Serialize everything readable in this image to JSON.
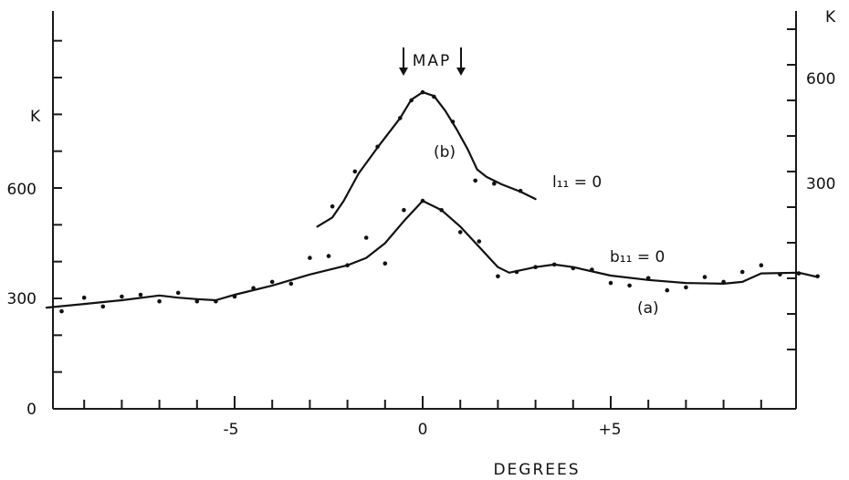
{
  "chart_data": {
    "type": "line",
    "xlabel": "DEGREES",
    "left_axis": {
      "unit": "K",
      "ticks": [
        "0",
        "300",
        "600"
      ]
    },
    "right_axis": {
      "unit": "K",
      "ticks": [
        "300",
        "600"
      ]
    },
    "x_ticks": [
      "-5",
      "0",
      "+5"
    ],
    "xlim": [
      -10,
      10
    ],
    "ylim_left": [
      0,
      1050
    ],
    "annotations": {
      "map": "MAP",
      "curve_a": "(a)",
      "curve_b": "(b)",
      "b_eq": "b₁₁ = 0",
      "l_eq": "l₁₁ = 0"
    },
    "series": [
      {
        "name": "(a)",
        "curve": [
          [
            -10,
            275
          ],
          [
            -9,
            285
          ],
          [
            -8,
            295
          ],
          [
            -7,
            308
          ],
          [
            -6.5,
            302
          ],
          [
            -6,
            298
          ],
          [
            -5.5,
            295
          ],
          [
            -5,
            310
          ],
          [
            -4,
            335
          ],
          [
            -3,
            365
          ],
          [
            -2,
            390
          ],
          [
            -1.5,
            410
          ],
          [
            -1,
            450
          ],
          [
            -0.5,
            510
          ],
          [
            0,
            565
          ],
          [
            0.5,
            540
          ],
          [
            1,
            495
          ],
          [
            1.5,
            440
          ],
          [
            2,
            385
          ],
          [
            2.3,
            370
          ],
          [
            3,
            385
          ],
          [
            3.5,
            392
          ],
          [
            4,
            385
          ],
          [
            5,
            362
          ],
          [
            6,
            350
          ],
          [
            7,
            342
          ],
          [
            8,
            340
          ],
          [
            8.5,
            345
          ],
          [
            9,
            368
          ],
          [
            10,
            370
          ],
          [
            10.5,
            358
          ]
        ],
        "points": [
          [
            -9.6,
            265
          ],
          [
            -9,
            302
          ],
          [
            -8.5,
            278
          ],
          [
            -8,
            305
          ],
          [
            -7.5,
            310
          ],
          [
            -7,
            292
          ],
          [
            -6.5,
            315
          ],
          [
            -6,
            292
          ],
          [
            -5.5,
            292
          ],
          [
            -5,
            305
          ],
          [
            -4.5,
            328
          ],
          [
            -4,
            345
          ],
          [
            -3.5,
            340
          ],
          [
            -3,
            410
          ],
          [
            -2.5,
            415
          ],
          [
            -2,
            390
          ],
          [
            -1.5,
            465
          ],
          [
            -1,
            395
          ],
          [
            -0.5,
            540
          ],
          [
            0,
            565
          ],
          [
            0.5,
            540
          ],
          [
            1,
            480
          ],
          [
            1.5,
            455
          ],
          [
            2,
            360
          ],
          [
            2.5,
            372
          ],
          [
            3,
            385
          ],
          [
            3.5,
            392
          ],
          [
            4,
            382
          ],
          [
            4.5,
            378
          ],
          [
            5,
            342
          ],
          [
            5.5,
            335
          ],
          [
            6,
            355
          ],
          [
            6.5,
            322
          ],
          [
            7,
            330
          ],
          [
            7.5,
            358
          ],
          [
            8,
            345
          ],
          [
            8.5,
            372
          ],
          [
            9,
            390
          ],
          [
            9.5,
            365
          ],
          [
            10,
            368
          ],
          [
            10.5,
            360
          ]
        ]
      },
      {
        "name": "(b)",
        "curve": [
          [
            -2.8,
            495
          ],
          [
            -2.4,
            520
          ],
          [
            -2.1,
            565
          ],
          [
            -1.7,
            640
          ],
          [
            -1.2,
            710
          ],
          [
            -0.6,
            790
          ],
          [
            -0.3,
            840
          ],
          [
            0,
            860
          ],
          [
            0.3,
            850
          ],
          [
            0.6,
            810
          ],
          [
            0.9,
            760
          ],
          [
            1.2,
            705
          ],
          [
            1.45,
            650
          ],
          [
            1.7,
            630
          ],
          [
            2.1,
            610
          ],
          [
            2.6,
            590
          ],
          [
            3,
            570
          ]
        ],
        "points": [
          [
            -2.4,
            550
          ],
          [
            -1.8,
            645
          ],
          [
            -1.2,
            712
          ],
          [
            -0.6,
            790
          ],
          [
            -0.3,
            838
          ],
          [
            0,
            860
          ],
          [
            0.3,
            848
          ],
          [
            0.8,
            780
          ],
          [
            1.4,
            620
          ],
          [
            1.9,
            612
          ],
          [
            2.6,
            592
          ]
        ]
      }
    ]
  }
}
